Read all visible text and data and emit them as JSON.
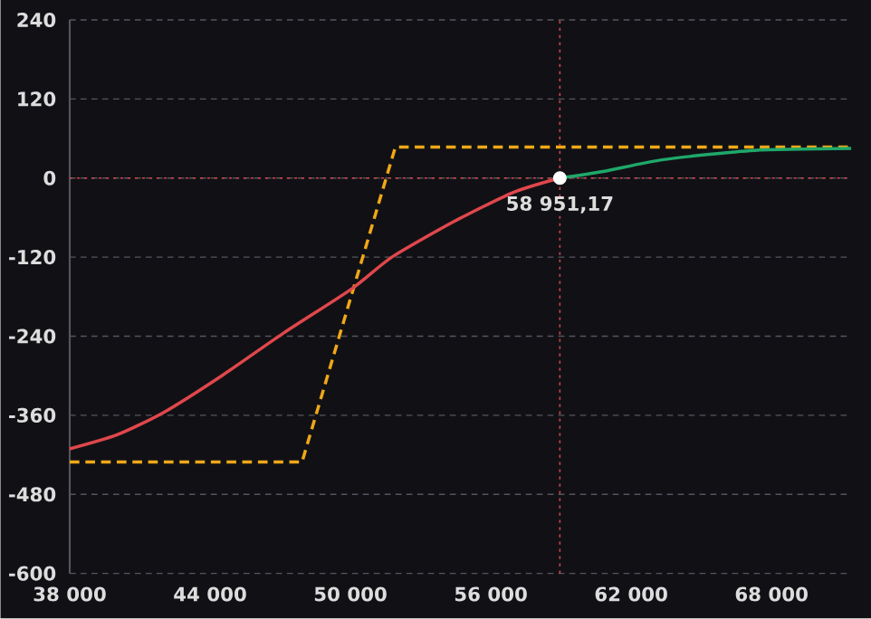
{
  "chart_data": {
    "type": "line",
    "xlim": [
      38000,
      71400
    ],
    "ylim": [
      -600,
      240
    ],
    "xticks": [
      {
        "value": 38000,
        "label": "38 000"
      },
      {
        "value": 44000,
        "label": "44 000"
      },
      {
        "value": 50000,
        "label": "50 000"
      },
      {
        "value": 56000,
        "label": "56 000"
      },
      {
        "value": 62000,
        "label": "62 000"
      },
      {
        "value": 68000,
        "label": "68 000"
      }
    ],
    "yticks": [
      -600,
      -480,
      -360,
      -240,
      -120,
      0,
      120,
      240
    ],
    "grid": "y",
    "series": [
      {
        "color": "#f0a818",
        "line_style": "dashed",
        "x": [
          38000,
          47930,
          51920,
          71400
        ],
        "values": [
          -431,
          -431,
          47,
          47
        ]
      },
      {
        "color": "#e0474c",
        "line_style": "solid",
        "x": [
          38000,
          40000,
          42000,
          44500,
          47150,
          50060,
          51770,
          54370,
          56940,
          58951.17
        ],
        "values": [
          -411,
          -390,
          -356,
          -300,
          -235,
          -168,
          -120,
          -67,
          -22,
          0
        ]
      },
      {
        "color": "#1fa86a",
        "line_style": "solid",
        "x": [
          58951.17,
          60800,
          63380,
          67250,
          71400
        ],
        "values": [
          0,
          10,
          28,
          42,
          45
        ]
      },
      {
        "type": "scatter",
        "color": "#ffffff",
        "marker": "circle",
        "x": [
          58951.17
        ],
        "values": [
          0
        ]
      }
    ],
    "ref_lines": [
      {
        "axis": "y",
        "value": 0,
        "color": "#d0454a",
        "line_style": "dotted"
      },
      {
        "axis": "x",
        "value": 58951.17,
        "color": "#d0454a",
        "line_style": "dotted"
      }
    ],
    "annotations": [
      {
        "text": "58 951,17",
        "x": 58951.17,
        "y": 0
      }
    ]
  }
}
